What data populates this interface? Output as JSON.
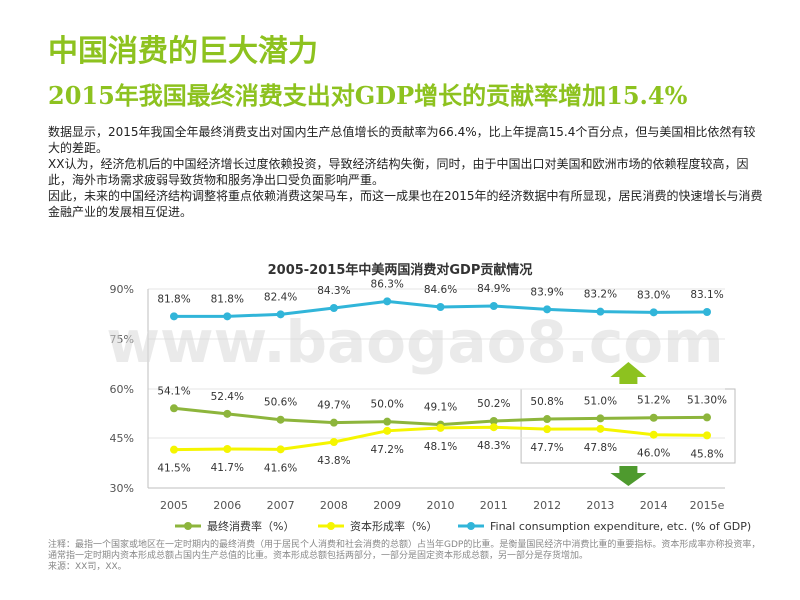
{
  "colors": {
    "accent": "#8DC21F",
    "series_consumption": "#8DB53C",
    "series_capital": "#F5F500",
    "series_us": "#31B5D9",
    "arrow_up": "#8DC21F",
    "arrow_down": "#4E9A2E",
    "watermark": "#D9D9D9"
  },
  "header": {
    "title": "中国消费的巨大潜力",
    "subtitle": "2015年我国最终消费支出对GDP增长的贡献率增加15.4%"
  },
  "body": {
    "paragraphs": [
      "数据显示，2015年我国全年最终消费支出对国内生产总值增长的贡献率为66.4%，比上年提高15.4个百分点，但与美国相比依然有较大的差距。",
      "XX认为，经济危机后的中国经济增长过度依赖投资，导致经济结构失衡，同时，由于中国出口对美国和欧洲市场的依赖程度较高，因此，海外市场需求疲弱导致货物和服务净出口受负面影响严重。",
      "因此，未来的中国经济结构调整将重点依赖消费这架马车，而这一成果也在2015年的经济数据中有所显现，居民消费的快速增长与消费金融产业的发展相互促进。"
    ]
  },
  "watermark": "www.baogao8.com",
  "footnote": {
    "lines": [
      "注释：最指一个国家或地区在一定时期内的最终消费（用于居民个人消费和社会消费的总额）占当年GDP的比重。是衡量国民经济中消费比重的重要指标。资本形成率亦称投资率，",
      "通常指一定时期内资本形成总额占国内生产总值的比重。资本形成总额包括两部分，一部分是固定资本形成总额，另一部分是存货增加。",
      "来源：XX司，XX。"
    ]
  },
  "chart_data": {
    "type": "line",
    "title": "2005-2015年中美两国消费对GDP贡献情况",
    "categories": [
      "2005",
      "2006",
      "2007",
      "2008",
      "2009",
      "2010",
      "2011",
      "2012",
      "2013",
      "2014",
      "2015e"
    ],
    "y_ticks": [
      "90%",
      "75%",
      "60%",
      "45%",
      "30%"
    ],
    "ylim": [
      30,
      90
    ],
    "y_scale_note": "axis segments are non-uniform (tick spacing drawn equal); points are placed by the printed tick values",
    "grid": true,
    "legend_position": "bottom",
    "series": [
      {
        "name": "最终消费率（%）",
        "color_key": "series_consumption",
        "values": [
          54.1,
          52.4,
          50.6,
          49.7,
          50.0,
          49.1,
          50.2,
          50.8,
          51.0,
          51.2,
          51.3
        ],
        "labels": [
          "54.1%",
          "52.4%",
          "50.6%",
          "49.7%",
          "50.0%",
          "49.1%",
          "50.2%",
          "50.8%",
          "51.0%",
          "51.2%",
          "51.30%"
        ]
      },
      {
        "name": "资本形成率（%）",
        "color_key": "series_capital",
        "values": [
          41.5,
          41.7,
          41.6,
          43.8,
          47.2,
          48.1,
          48.3,
          47.7,
          47.8,
          46.0,
          45.8
        ],
        "labels": [
          "41.5%",
          "41.7%",
          "41.6%",
          "43.8%",
          "47.2%",
          "48.1%",
          "48.3%",
          "47.7%",
          "47.8%",
          "46.0%",
          "45.8%"
        ]
      },
      {
        "name": "Final consumption expenditure, etc. (% of GDP)",
        "color_key": "series_us",
        "values": [
          81.8,
          81.8,
          82.4,
          84.3,
          86.3,
          84.6,
          84.9,
          83.9,
          83.2,
          83.0,
          83.1
        ],
        "labels": [
          "81.8%",
          "81.8%",
          "82.4%",
          "84.3%",
          "86.3%",
          "84.6%",
          "84.9%",
          "83.9%",
          "83.2%",
          "83.0%",
          "83.1%"
        ]
      }
    ]
  }
}
